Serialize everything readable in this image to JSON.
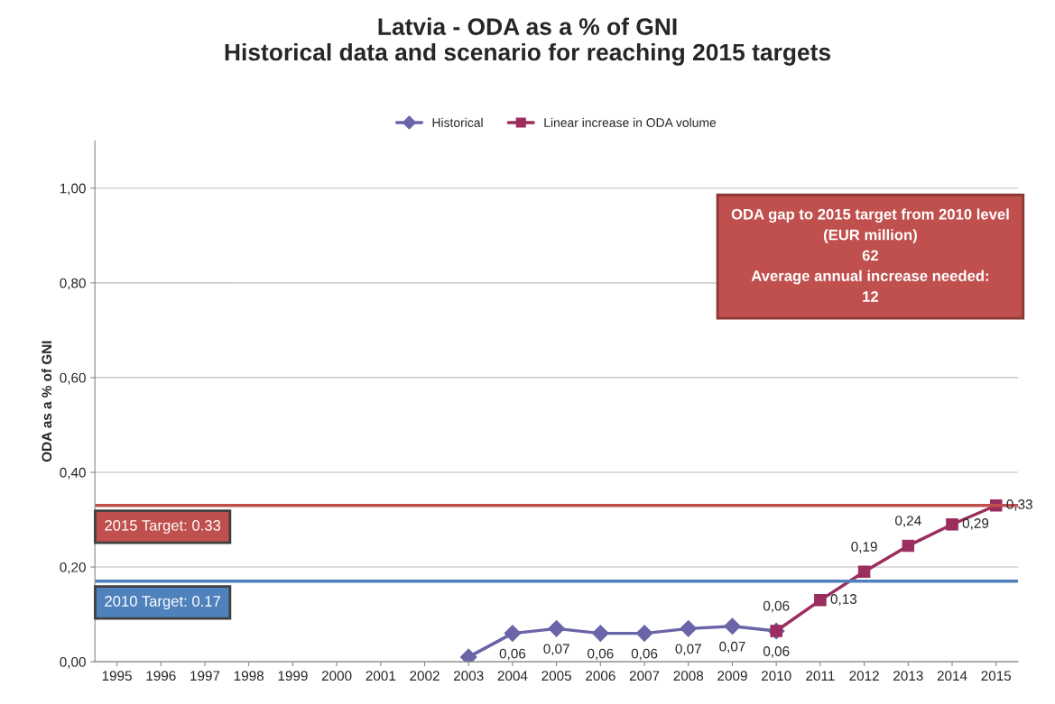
{
  "chart_data": {
    "type": "line",
    "title": "Latvia - ODA as a % of GNI\nHistorical data and scenario for reaching 2015 targets",
    "ylabel": "ODA as a % of GNI",
    "categories": [
      "1995",
      "1996",
      "1997",
      "1998",
      "1999",
      "2000",
      "2001",
      "2002",
      "2003",
      "2004",
      "2005",
      "2006",
      "2007",
      "2008",
      "2009",
      "2010",
      "2011",
      "2012",
      "2013",
      "2014",
      "2015"
    ],
    "series": [
      {
        "name": "Historical",
        "color": "#6a64a8",
        "marker": "diamond",
        "values": [
          null,
          null,
          null,
          null,
          null,
          null,
          null,
          null,
          0.01,
          0.06,
          0.07,
          0.06,
          0.06,
          0.07,
          0.075,
          0.065,
          null,
          null,
          null,
          null,
          null
        ],
        "value_labels": [
          null,
          null,
          null,
          null,
          null,
          null,
          null,
          null,
          null,
          "0,06",
          "0,07",
          "0,06",
          "0,06",
          "0,07",
          "0,07",
          "0,06",
          null,
          null,
          null,
          null,
          null
        ]
      },
      {
        "name": "Linear increase in ODA volume",
        "color": "#9b2d5f",
        "marker": "square",
        "values": [
          null,
          null,
          null,
          null,
          null,
          null,
          null,
          null,
          null,
          null,
          null,
          null,
          null,
          null,
          null,
          0.065,
          0.13,
          0.19,
          0.245,
          0.29,
          0.33
        ],
        "value_labels": [
          null,
          null,
          null,
          null,
          null,
          null,
          null,
          null,
          null,
          null,
          null,
          null,
          null,
          null,
          null,
          "0,06",
          "0,13",
          "0,19",
          "0,24",
          "0,29",
          "0,33"
        ]
      }
    ],
    "ylim": [
      0,
      1.1
    ],
    "yticks": [
      {
        "value": 0,
        "label": "0,00"
      },
      {
        "value": 0.2,
        "label": "0,20"
      },
      {
        "value": 0.4,
        "label": "0,40"
      },
      {
        "value": 0.6,
        "label": "0,60"
      },
      {
        "value": 0.8,
        "label": "0,80"
      },
      {
        "value": 1.0,
        "label": "1,00"
      }
    ],
    "grid": "y",
    "legend": "top",
    "ref_lines": [
      {
        "axis": "y",
        "value": 0.33,
        "label": "2015 Target: 0.33",
        "color": "#c0504d"
      },
      {
        "axis": "y",
        "value": 0.17,
        "label": "2010 Target: 0.17",
        "color": "#4f81bd"
      }
    ],
    "annotations": [
      "ODA gap to 2015 target from 2010 level\n(EUR million)\n62\nAverage annual increase needed:\n12"
    ]
  }
}
